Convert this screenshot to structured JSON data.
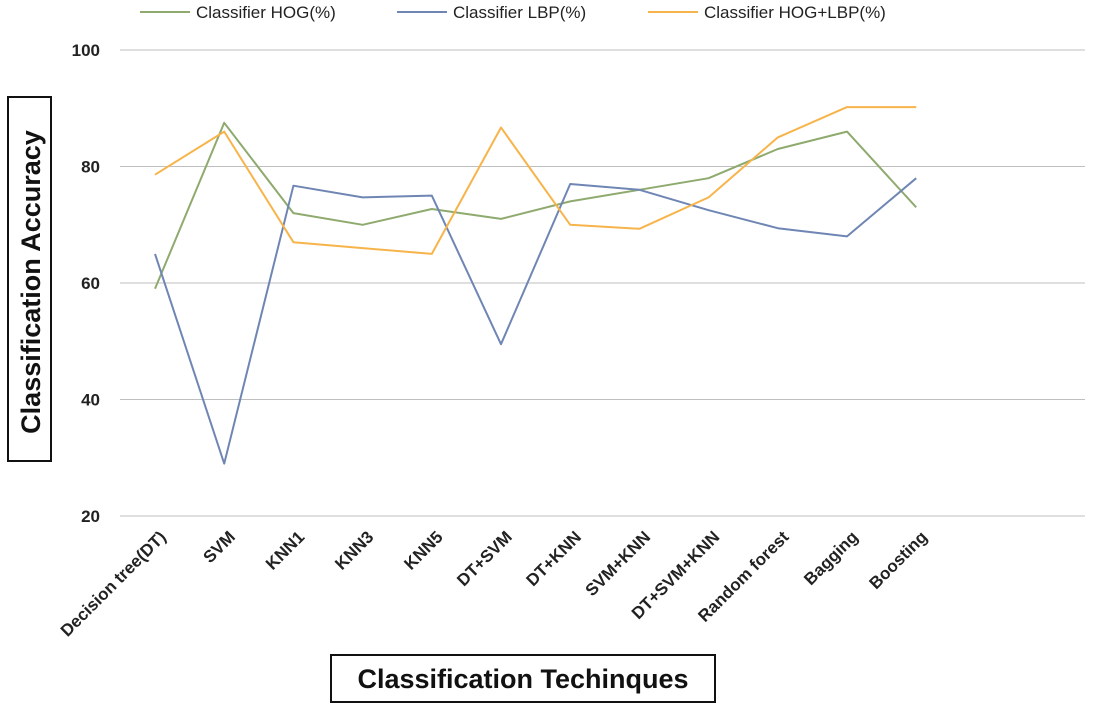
{
  "chart_data": {
    "type": "line",
    "title": "",
    "xlabel": "Classification Techinques",
    "ylabel": "Classification Accuracy",
    "ylim": [
      20,
      100
    ],
    "yticks": [
      "20",
      "40",
      "60",
      "80",
      "100"
    ],
    "grid": true,
    "legend_position": "top",
    "categories": [
      "Decision tree(DT)",
      "SVM",
      "KNN1",
      "KNN3",
      "KNN5",
      "DT+SVM",
      "DT+KNN",
      "SVM+KNN",
      "DT+SVM+KNN",
      "Random forest",
      "Bagging",
      "Boosting"
    ],
    "series": [
      {
        "name": "Classifier HOG(%)",
        "color": "#8faa6e",
        "values": [
          59,
          87.5,
          72,
          70,
          72.7,
          71,
          74,
          76,
          78,
          83,
          86,
          73
        ]
      },
      {
        "name": "Classifier LBP(%)",
        "color": "#6f86b4",
        "values": [
          65,
          29,
          76.7,
          74.7,
          75,
          49.5,
          77,
          76,
          72.5,
          69.4,
          68,
          78
        ]
      },
      {
        "name": "Classifier HOG+LBP(%)",
        "color": "#f7b44a",
        "values": [
          78.6,
          86,
          67,
          66,
          65,
          86.7,
          70,
          69.3,
          74.7,
          85,
          90.2,
          90.2
        ]
      }
    ]
  }
}
